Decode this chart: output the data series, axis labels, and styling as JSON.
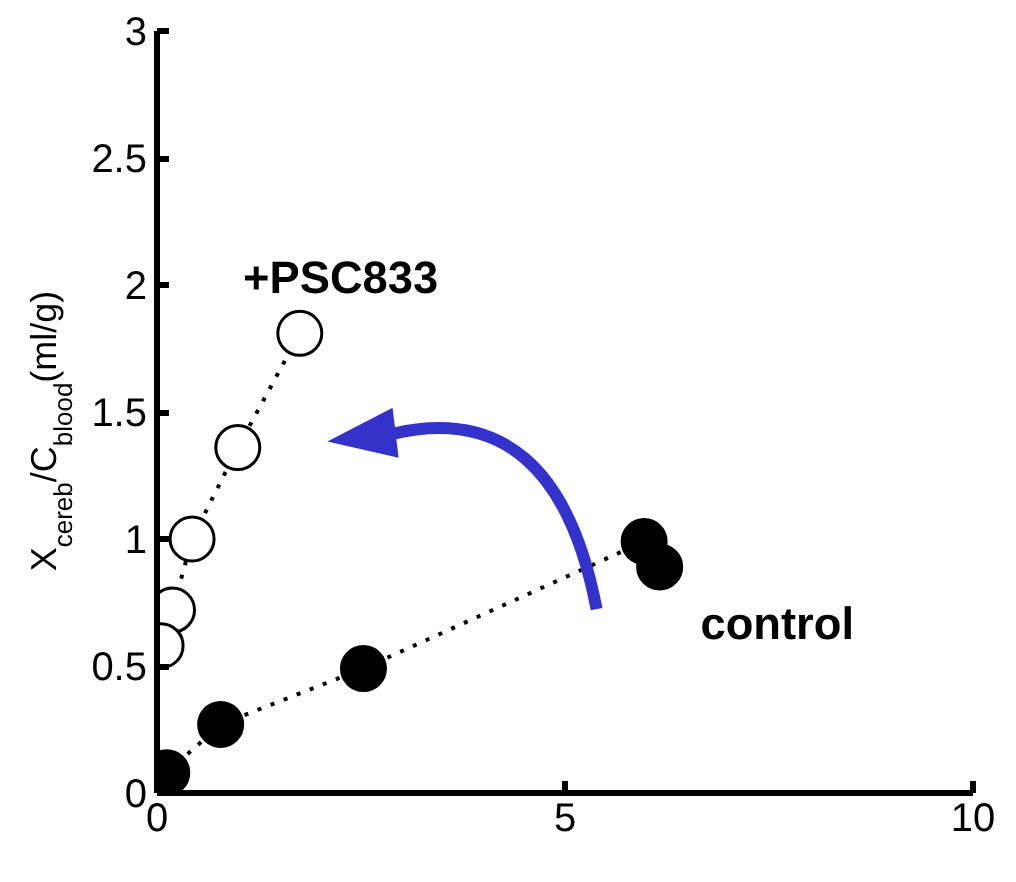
{
  "chart_data": {
    "type": "line",
    "ylabel": "X$_{cereb}$/C$_{blood}$(ml/g)",
    "xlim": [
      0,
      10
    ],
    "ylim": [
      0,
      3
    ],
    "xticks": [
      0,
      5,
      10
    ],
    "yticks": [
      0,
      0.5,
      1,
      1.5,
      2,
      2.5,
      3
    ],
    "grid": false,
    "legend": false,
    "marker": "circle",
    "line_style": "dotted",
    "series": [
      {
        "name": "+PSC833",
        "color": "#ffffff",
        "x": [
          0.05,
          0.19,
          0.43,
          0.99,
          1.75
        ],
        "values": [
          0.58,
          0.72,
          1.0,
          1.36,
          1.81
        ]
      },
      {
        "name": "control",
        "color": "#000000",
        "x": [
          0.12,
          0.78,
          2.53,
          5.97,
          6.16
        ],
        "values": [
          0.08,
          0.27,
          0.49,
          0.99,
          0.89
        ]
      }
    ]
  }
}
